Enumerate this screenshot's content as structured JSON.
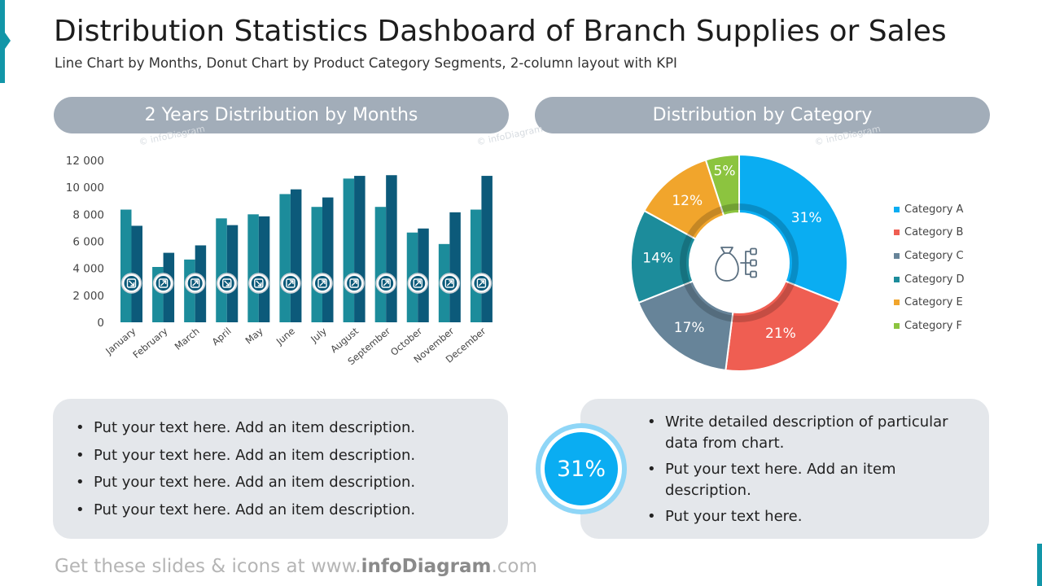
{
  "header": {
    "title": "Distribution Statistics Dashboard of Branch Supplies or Sales",
    "subtitle": "Line Chart by Months, Donut Chart by Product Category Segments, 2-column layout with KPI"
  },
  "left_panel": {
    "heading": "2 Years Distribution by Months"
  },
  "right_panel": {
    "heading": "Distribution by Category"
  },
  "watermark": "© infoDiagram",
  "colors": {
    "accent": "#1296a8",
    "bar_year1": "#1c8c9b",
    "bar_year2": "#0c5a7a",
    "pill": "#a2adb9",
    "box": "#e4e7eb",
    "kpi": "#0aadf2"
  },
  "chart_data": [
    {
      "type": "bar",
      "categories": [
        "January",
        "February",
        "March",
        "April",
        "May",
        "June",
        "July",
        "August",
        "September",
        "October",
        "November",
        "December"
      ],
      "series": [
        {
          "values": [
            8350,
            4100,
            4650,
            7700,
            8000,
            9500,
            8550,
            10650,
            8550,
            6650,
            5800,
            8350
          ]
        },
        {
          "values": [
            7150,
            5150,
            5700,
            7200,
            7850,
            9850,
            9250,
            10850,
            10900,
            6950,
            8150,
            10850
          ]
        }
      ],
      "trend_icons": [
        "down-right",
        "up-right",
        "up-right",
        "down-right",
        "down-right",
        "up-right",
        "up-right",
        "up-right",
        "up-right",
        "up-right",
        "up-right",
        "up-right"
      ],
      "ylim": [
        0,
        12000
      ],
      "yticks": [
        "0",
        "2 000",
        "4 000",
        "6 000",
        "8 000",
        "10 000",
        "12 000"
      ],
      "grid": false
    },
    {
      "type": "pie",
      "donut": true,
      "categories": [
        "Category A",
        "Category B",
        "Category C",
        "Category D",
        "Category E",
        "Category F"
      ],
      "values": [
        31,
        21,
        17,
        14,
        12,
        5
      ],
      "labels": [
        "31%",
        "21%",
        "17%",
        "14%",
        "12%",
        "5%"
      ],
      "colors": [
        "#0aadf2",
        "#ef5e52",
        "#678499",
        "#1c8c9b",
        "#f1a52c",
        "#8cc43f"
      ],
      "center_icon": "money-bag-hierarchy-icon",
      "legend_position": "right"
    }
  ],
  "left_box": {
    "items": [
      "Put your text here. Add an item description.",
      "Put your text here. Add an item description.",
      "Put your text here. Add an item description.",
      "Put your text here. Add an item description."
    ]
  },
  "right_box": {
    "kpi": "31%",
    "items": [
      "Write detailed description of particular data from chart.",
      "Put your text here. Add an item description.",
      "Put your text here."
    ]
  },
  "footer": {
    "prefix": "Get these slides & icons at www.",
    "brand": "infoDiagram",
    "suffix": ".com"
  }
}
